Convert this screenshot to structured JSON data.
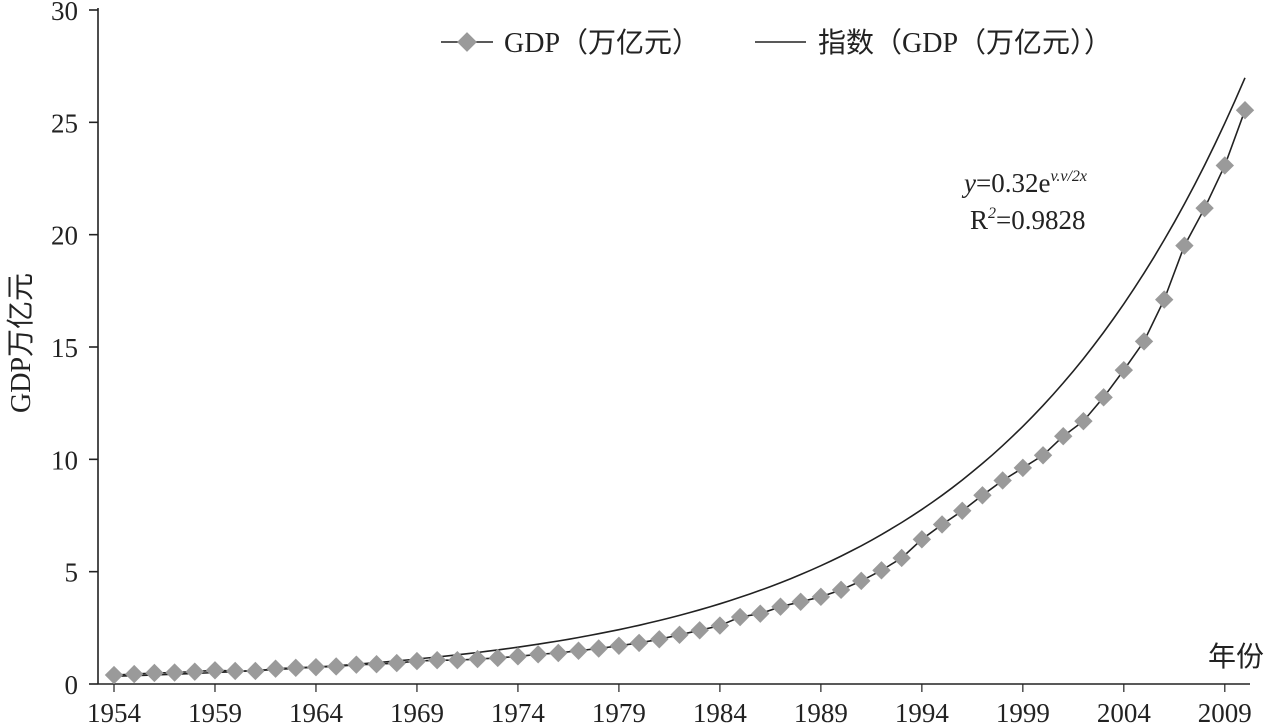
{
  "chart_data": {
    "type": "line",
    "ylabel": "GDP万亿元",
    "xlabel": "年份",
    "ylim": [
      0,
      30
    ],
    "yticks": [
      0,
      5,
      10,
      15,
      20,
      25,
      30
    ],
    "xlim": [
      1954,
      2010
    ],
    "xticks": [
      "1954",
      "1959",
      "1964",
      "1969",
      "1974",
      "1979",
      "1984",
      "1989",
      "1994",
      "1999",
      "2004",
      "2009"
    ],
    "legend_position": "top",
    "grid": false,
    "series": [
      {
        "name": "GDP（万亿元）",
        "style": "line-with-diamond-markers",
        "color": "#9a9a9a",
        "line_color": "#222222",
        "x": [
          1954,
          1955,
          1956,
          1957,
          1958,
          1959,
          1960,
          1961,
          1962,
          1963,
          1964,
          1965,
          1966,
          1967,
          1968,
          1969,
          1970,
          1971,
          1972,
          1973,
          1974,
          1975,
          1976,
          1977,
          1978,
          1979,
          1980,
          1981,
          1982,
          1983,
          1984,
          1985,
          1986,
          1987,
          1988,
          1989,
          1990,
          1991,
          1992,
          1993,
          1994,
          1995,
          1996,
          1997,
          1998,
          1999,
          2000,
          2001,
          2002,
          2003,
          2004,
          2005,
          2006,
          2007,
          2008,
          2009,
          2010
        ],
        "values": [
          0.4,
          0.44,
          0.49,
          0.51,
          0.55,
          0.61,
          0.58,
          0.58,
          0.68,
          0.72,
          0.75,
          0.78,
          0.86,
          0.88,
          0.93,
          1.02,
          1.06,
          1.06,
          1.11,
          1.16,
          1.23,
          1.32,
          1.38,
          1.48,
          1.58,
          1.7,
          1.83,
          1.99,
          2.19,
          2.39,
          2.6,
          2.98,
          3.13,
          3.44,
          3.66,
          3.88,
          4.19,
          4.59,
          5.06,
          5.61,
          6.44,
          7.1,
          7.71,
          8.4,
          9.06,
          9.62,
          10.18,
          11.03,
          11.7,
          12.76,
          13.97,
          15.25,
          17.11,
          19.51,
          21.18,
          23.08,
          25.54
        ]
      },
      {
        "name": "指数（GDP（万亿元））",
        "style": "line",
        "color": "#222222",
        "trend": "exponential",
        "fit_coefficient": 0.32,
        "fit_growth_per_year": 0.0778
      }
    ],
    "annotations": {
      "equation_y": "y",
      "equation_main": "=0.32e",
      "equation_exponent": "v.v/2x",
      "r_squared_label": "R",
      "r_squared_sup": "2",
      "r_squared_value": "=0.9828"
    }
  }
}
